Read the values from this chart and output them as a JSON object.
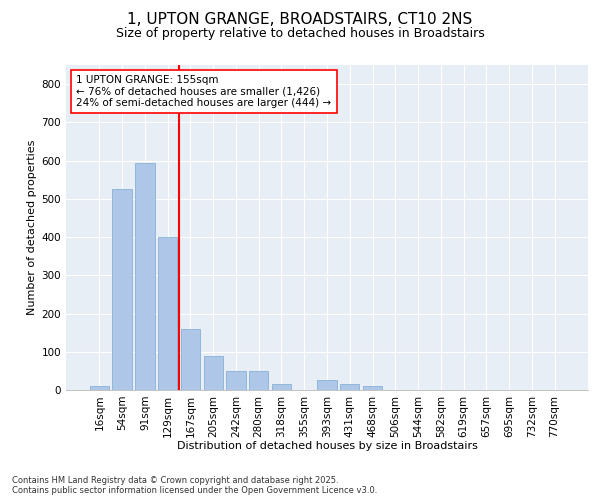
{
  "title_line1": "1, UPTON GRANGE, BROADSTAIRS, CT10 2NS",
  "title_line2": "Size of property relative to detached houses in Broadstairs",
  "xlabel": "Distribution of detached houses by size in Broadstairs",
  "ylabel": "Number of detached properties",
  "categories": [
    "16sqm",
    "54sqm",
    "91sqm",
    "129sqm",
    "167sqm",
    "205sqm",
    "242sqm",
    "280sqm",
    "318sqm",
    "355sqm",
    "393sqm",
    "431sqm",
    "468sqm",
    "506sqm",
    "544sqm",
    "582sqm",
    "619sqm",
    "657sqm",
    "695sqm",
    "732sqm",
    "770sqm"
  ],
  "values": [
    10,
    527,
    593,
    400,
    160,
    88,
    50,
    50,
    15,
    0,
    25,
    15,
    10,
    0,
    0,
    0,
    0,
    0,
    0,
    0,
    0
  ],
  "bar_color": "#aec6e8",
  "bar_edge_color": "#7aaad0",
  "vline_x_index": 3.5,
  "vline_color": "red",
  "annotation_text": "1 UPTON GRANGE: 155sqm\n← 76% of detached houses are smaller (1,426)\n24% of semi-detached houses are larger (444) →",
  "annotation_box_color": "white",
  "annotation_box_edge": "red",
  "ylim": [
    0,
    850
  ],
  "yticks": [
    0,
    100,
    200,
    300,
    400,
    500,
    600,
    700,
    800
  ],
  "background_color": "#e8eef5",
  "footer_text": "Contains HM Land Registry data © Crown copyright and database right 2025.\nContains public sector information licensed under the Open Government Licence v3.0.",
  "title_fontsize": 11,
  "subtitle_fontsize": 9,
  "axis_label_fontsize": 8,
  "tick_fontsize": 7.5,
  "annotation_fontsize": 7.5,
  "footer_fontsize": 6
}
